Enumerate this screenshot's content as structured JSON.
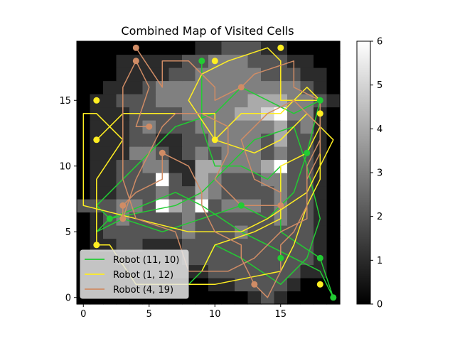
{
  "chart_data": {
    "type": "heatmap",
    "title": "Combined Map of Visited Cells",
    "xlabel": "",
    "ylabel": "",
    "xlim": [
      -0.5,
      19.5
    ],
    "ylim": [
      -0.5,
      19.5
    ],
    "xticks": [
      0,
      5,
      10,
      15
    ],
    "yticks": [
      0,
      5,
      10,
      15
    ],
    "grid": false,
    "colormap": "gray",
    "colorbar": {
      "min": 0,
      "max": 6,
      "ticks": [
        0,
        1,
        2,
        3,
        4,
        5,
        6
      ]
    },
    "legend_placement": "lower-left",
    "grid_size": [
      20,
      20
    ],
    "heatmap": [
      [
        0,
        0,
        0,
        0,
        0,
        0,
        0,
        0,
        0,
        0,
        0,
        0,
        0,
        1,
        2,
        1,
        0,
        0,
        0,
        0
      ],
      [
        0,
        0,
        0,
        0,
        0,
        0,
        0,
        0,
        0,
        0,
        1,
        1,
        2,
        2,
        2,
        2,
        1,
        0,
        0,
        0
      ],
      [
        0,
        0,
        0,
        0,
        1,
        1,
        1,
        1,
        1,
        1,
        2,
        2,
        2,
        2,
        2,
        2,
        2,
        1,
        1,
        0
      ],
      [
        0,
        0,
        0,
        1,
        1,
        1,
        1,
        1,
        2,
        2,
        2,
        2,
        2,
        2,
        2,
        2,
        2,
        2,
        1,
        0
      ],
      [
        0,
        1,
        1,
        2,
        2,
        1,
        1,
        1,
        2,
        2,
        2,
        2,
        2,
        2,
        2,
        2,
        2,
        2,
        1,
        0
      ],
      [
        0,
        1,
        2,
        2,
        2,
        2,
        2,
        2,
        3,
        2,
        2,
        2,
        3,
        2,
        2,
        2,
        2,
        2,
        1,
        0
      ],
      [
        0,
        1,
        2,
        3,
        2,
        2,
        2,
        2,
        3,
        2,
        2,
        2,
        2,
        2,
        2,
        3,
        2,
        2,
        1,
        0
      ],
      [
        2,
        2,
        2,
        3,
        3,
        2,
        6,
        4,
        3,
        6,
        2,
        3,
        3,
        3,
        2,
        3,
        2,
        2,
        1,
        0
      ],
      [
        0,
        1,
        1,
        2,
        2,
        2,
        3,
        2,
        2,
        4,
        3,
        2,
        2,
        2,
        2,
        3,
        2,
        2,
        1,
        0
      ],
      [
        0,
        1,
        1,
        2,
        2,
        2,
        6,
        2,
        1,
        4,
        3,
        2,
        2,
        2,
        3,
        3,
        2,
        2,
        1,
        0
      ],
      [
        0,
        1,
        1,
        2,
        2,
        3,
        3,
        1,
        1,
        4,
        4,
        3,
        3,
        3,
        4,
        6,
        2,
        2,
        1,
        0
      ],
      [
        0,
        1,
        1,
        1,
        3,
        3,
        2,
        1,
        2,
        3,
        2,
        3,
        3,
        3,
        2,
        3,
        2,
        2,
        1,
        0
      ],
      [
        0,
        1,
        1,
        1,
        2,
        2,
        1,
        1,
        2,
        2,
        3,
        3,
        3,
        3,
        2,
        4,
        2,
        2,
        1,
        0
      ],
      [
        0,
        1,
        1,
        1,
        2,
        3,
        2,
        2,
        2,
        3,
        3,
        3,
        3,
        3,
        3,
        4,
        2,
        3,
        1,
        0
      ],
      [
        0,
        1,
        1,
        1,
        2,
        2,
        2,
        2,
        3,
        3,
        3,
        3,
        4,
        4,
        5,
        6,
        3,
        3,
        1,
        0
      ],
      [
        0,
        1,
        1,
        2,
        2,
        2,
        3,
        3,
        3,
        3,
        3,
        3,
        3,
        4,
        4,
        4,
        3,
        3,
        2,
        1
      ],
      [
        0,
        0,
        1,
        1,
        1,
        2,
        3,
        3,
        3,
        3,
        3,
        3,
        3,
        3,
        3,
        3,
        3,
        2,
        1,
        0
      ],
      [
        0,
        0,
        0,
        1,
        1,
        1,
        1,
        2,
        2,
        3,
        3,
        3,
        3,
        3,
        2,
        2,
        2,
        1,
        1,
        0
      ],
      [
        0,
        0,
        0,
        1,
        1,
        1,
        1,
        1,
        2,
        2,
        3,
        3,
        3,
        2,
        2,
        2,
        1,
        1,
        0,
        0
      ],
      [
        0,
        0,
        0,
        0,
        0,
        0,
        0,
        0,
        0,
        1,
        1,
        2,
        2,
        2,
        1,
        1,
        0,
        0,
        0,
        0
      ]
    ],
    "series": [
      {
        "name": "Robot (11, 10)",
        "color": "#22cc33",
        "path": [
          [
            9,
            18
          ],
          [
            9,
            13
          ],
          [
            10,
            10
          ],
          [
            11,
            10
          ],
          [
            12,
            10
          ],
          [
            14,
            9
          ],
          [
            15,
            10
          ],
          [
            15,
            5
          ],
          [
            18,
            3
          ],
          [
            19,
            0
          ],
          [
            18,
            2
          ],
          [
            12,
            5
          ],
          [
            9,
            7
          ],
          [
            7,
            8
          ],
          [
            2,
            6
          ],
          [
            1,
            7
          ],
          [
            4,
            10
          ],
          [
            7,
            13
          ],
          [
            10,
            14
          ],
          [
            12,
            16
          ],
          [
            14,
            15
          ],
          [
            16,
            14
          ],
          [
            18,
            15
          ],
          [
            17,
            11
          ],
          [
            16,
            8
          ],
          [
            14,
            6
          ],
          [
            12,
            7
          ],
          [
            9,
            6
          ],
          [
            6,
            5
          ],
          [
            3,
            6
          ],
          [
            1,
            5
          ],
          [
            2,
            6
          ],
          [
            7,
            7
          ],
          [
            9,
            8
          ],
          [
            11,
            10
          ],
          [
            13,
            12
          ],
          [
            16,
            13
          ],
          [
            17,
            10
          ],
          [
            18,
            6
          ],
          [
            17,
            3
          ],
          [
            15,
            1
          ],
          [
            12,
            3
          ],
          [
            10,
            4
          ],
          [
            9,
            2
          ],
          [
            8,
            1
          ]
        ],
        "markers": [
          [
            9,
            18
          ],
          [
            12,
            7
          ],
          [
            2,
            6
          ],
          [
            15,
            3
          ],
          [
            18,
            3
          ],
          [
            19,
            0
          ],
          [
            17,
            11
          ],
          [
            18,
            15
          ]
        ]
      },
      {
        "name": "Robot (1, 12)",
        "color": "#ffee22",
        "path": [
          [
            1,
            12
          ],
          [
            3,
            14
          ],
          [
            10,
            14
          ],
          [
            10,
            12
          ],
          [
            12,
            14
          ],
          [
            15,
            14
          ],
          [
            17,
            16
          ],
          [
            18,
            15
          ],
          [
            18,
            9
          ],
          [
            17,
            7
          ],
          [
            16,
            4
          ],
          [
            15,
            2
          ],
          [
            10,
            1
          ],
          [
            4,
            1
          ],
          [
            2,
            4
          ],
          [
            1,
            4
          ],
          [
            1,
            9
          ],
          [
            3,
            12
          ],
          [
            1,
            14
          ],
          [
            0,
            14
          ],
          [
            0,
            7
          ],
          [
            4,
            6
          ],
          [
            8,
            5
          ],
          [
            12,
            5
          ],
          [
            14,
            6
          ],
          [
            17,
            8
          ],
          [
            19,
            12
          ],
          [
            17,
            14
          ],
          [
            15,
            12
          ],
          [
            13,
            11
          ],
          [
            10,
            12
          ],
          [
            8,
            15
          ],
          [
            9,
            17
          ],
          [
            11,
            18
          ],
          [
            14,
            19
          ],
          [
            15,
            18
          ],
          [
            15,
            15
          ],
          [
            18,
            15
          ],
          [
            18,
            13
          ],
          [
            17,
            11
          ],
          [
            15,
            10
          ],
          [
            15,
            6
          ],
          [
            13,
            5
          ],
          [
            10,
            4
          ],
          [
            9,
            2
          ],
          [
            8,
            2
          ]
        ],
        "markers": [
          [
            1,
            15
          ],
          [
            1,
            12
          ],
          [
            1,
            4
          ],
          [
            10,
            12
          ],
          [
            10,
            18
          ],
          [
            15,
            19
          ],
          [
            18,
            14
          ],
          [
            18,
            1
          ]
        ]
      },
      {
        "name": "Robot (4, 19)",
        "color": "#d08c65",
        "path": [
          [
            4,
            19
          ],
          [
            6,
            16
          ],
          [
            6,
            18
          ],
          [
            8,
            18
          ],
          [
            10,
            16
          ],
          [
            10,
            15
          ],
          [
            12,
            16
          ],
          [
            13,
            17
          ],
          [
            16,
            18
          ],
          [
            16,
            16
          ],
          [
            18,
            15
          ],
          [
            18,
            12
          ],
          [
            17,
            10
          ],
          [
            17,
            7
          ],
          [
            16,
            5
          ],
          [
            15,
            4
          ],
          [
            15,
            2
          ],
          [
            14,
            0
          ],
          [
            13,
            1
          ],
          [
            12,
            3
          ],
          [
            12,
            4
          ],
          [
            10,
            5
          ],
          [
            9,
            7
          ],
          [
            9,
            8
          ],
          [
            8,
            10
          ],
          [
            6,
            11
          ],
          [
            6,
            9
          ],
          [
            4,
            8
          ],
          [
            3,
            7
          ],
          [
            3,
            6
          ],
          [
            4,
            9
          ],
          [
            5,
            11
          ],
          [
            6,
            13
          ],
          [
            7,
            14
          ],
          [
            9,
            14
          ],
          [
            11,
            13
          ],
          [
            11,
            11
          ],
          [
            10,
            9
          ],
          [
            12,
            7
          ],
          [
            14,
            7
          ],
          [
            15,
            7
          ],
          [
            15,
            8
          ],
          [
            13,
            9
          ],
          [
            12,
            12
          ],
          [
            14,
            14
          ],
          [
            16,
            15
          ],
          [
            18,
            13
          ],
          [
            18,
            11
          ],
          [
            17,
            9
          ],
          [
            17,
            6
          ],
          [
            15,
            5
          ],
          [
            13,
            3
          ],
          [
            11,
            2
          ],
          [
            8,
            2
          ],
          [
            7,
            5
          ],
          [
            4,
            6
          ],
          [
            3,
            9
          ],
          [
            3,
            16
          ],
          [
            4,
            18
          ],
          [
            5,
            16
          ],
          [
            4,
            13
          ],
          [
            5,
            13
          ]
        ],
        "markers": [
          [
            4,
            19
          ],
          [
            4,
            18
          ],
          [
            12,
            16
          ],
          [
            5,
            13
          ],
          [
            6,
            11
          ],
          [
            3,
            7
          ],
          [
            3,
            6
          ],
          [
            15,
            7
          ],
          [
            13,
            1
          ]
        ]
      }
    ]
  }
}
